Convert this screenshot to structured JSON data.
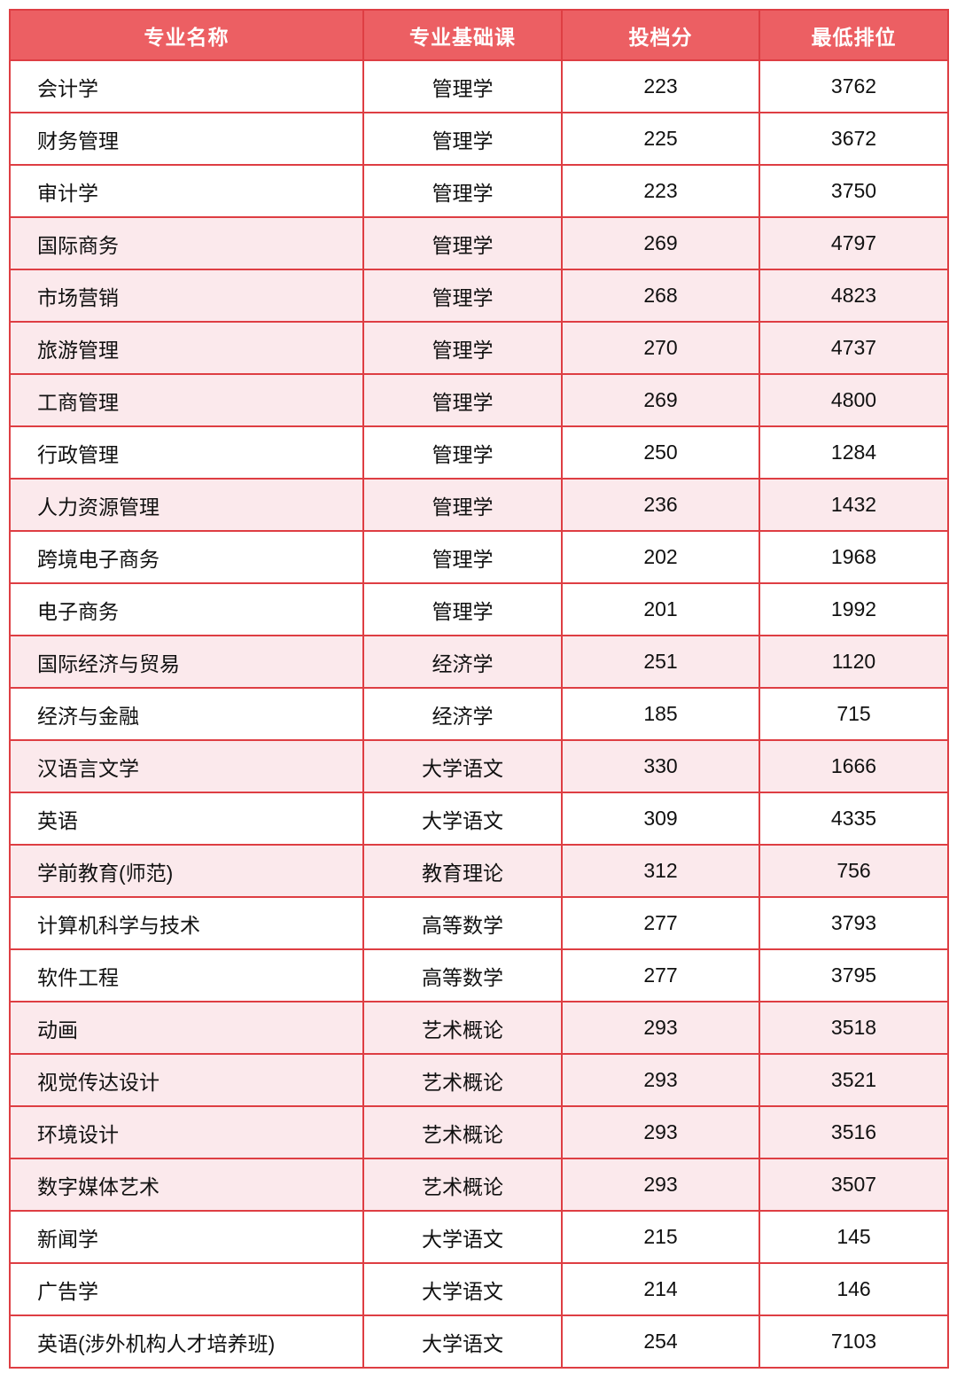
{
  "table": {
    "columns": [
      {
        "key": "major",
        "label": "专业名称"
      },
      {
        "key": "course",
        "label": "专业基础课"
      },
      {
        "key": "score",
        "label": "投档分"
      },
      {
        "key": "rank",
        "label": "最低排位"
      }
    ],
    "rows": [
      {
        "major": "会计学",
        "course": "管理学",
        "score": "223",
        "rank": "3762",
        "shaded": false
      },
      {
        "major": "财务管理",
        "course": "管理学",
        "score": "225",
        "rank": "3672",
        "shaded": false
      },
      {
        "major": "审计学",
        "course": "管理学",
        "score": "223",
        "rank": "3750",
        "shaded": false
      },
      {
        "major": "国际商务",
        "course": "管理学",
        "score": "269",
        "rank": "4797",
        "shaded": true
      },
      {
        "major": "市场营销",
        "course": "管理学",
        "score": "268",
        "rank": "4823",
        "shaded": true
      },
      {
        "major": "旅游管理",
        "course": "管理学",
        "score": "270",
        "rank": "4737",
        "shaded": true
      },
      {
        "major": "工商管理",
        "course": "管理学",
        "score": "269",
        "rank": "4800",
        "shaded": true
      },
      {
        "major": "行政管理",
        "course": "管理学",
        "score": "250",
        "rank": "1284",
        "shaded": false
      },
      {
        "major": "人力资源管理",
        "course": "管理学",
        "score": "236",
        "rank": "1432",
        "shaded": true
      },
      {
        "major": "跨境电子商务",
        "course": "管理学",
        "score": "202",
        "rank": "1968",
        "shaded": false
      },
      {
        "major": "电子商务",
        "course": "管理学",
        "score": "201",
        "rank": "1992",
        "shaded": false
      },
      {
        "major": "国际经济与贸易",
        "course": "经济学",
        "score": "251",
        "rank": "1120",
        "shaded": true
      },
      {
        "major": "经济与金融",
        "course": "经济学",
        "score": "185",
        "rank": "715",
        "shaded": false
      },
      {
        "major": "汉语言文学",
        "course": "大学语文",
        "score": "330",
        "rank": "1666",
        "shaded": true
      },
      {
        "major": "英语",
        "course": "大学语文",
        "score": "309",
        "rank": "4335",
        "shaded": false
      },
      {
        "major": "学前教育(师范)",
        "course": "教育理论",
        "score": "312",
        "rank": "756",
        "shaded": true
      },
      {
        "major": "计算机科学与技术",
        "course": "高等数学",
        "score": "277",
        "rank": "3793",
        "shaded": false
      },
      {
        "major": "软件工程",
        "course": "高等数学",
        "score": "277",
        "rank": "3795",
        "shaded": false
      },
      {
        "major": "动画",
        "course": "艺术概论",
        "score": "293",
        "rank": "3518",
        "shaded": true
      },
      {
        "major": "视觉传达设计",
        "course": "艺术概论",
        "score": "293",
        "rank": "3521",
        "shaded": true
      },
      {
        "major": "环境设计",
        "course": "艺术概论",
        "score": "293",
        "rank": "3516",
        "shaded": true
      },
      {
        "major": "数字媒体艺术",
        "course": "艺术概论",
        "score": "293",
        "rank": "3507",
        "shaded": true
      },
      {
        "major": "新闻学",
        "course": "大学语文",
        "score": "215",
        "rank": "145",
        "shaded": false
      },
      {
        "major": "广告学",
        "course": "大学语文",
        "score": "214",
        "rank": "146",
        "shaded": false
      },
      {
        "major": "英语(涉外机构人才培养班)",
        "course": "大学语文",
        "score": "254",
        "rank": "7103",
        "shaded": false
      }
    ],
    "colors": {
      "header_bg": "#EC5F63",
      "header_text": "#FFFFFF",
      "border": "#DE3E43",
      "row_bg": "#FFFFFF",
      "row_shaded_bg": "#FBE9EC",
      "text": "#111111",
      "page_bg": "#FFFFFF"
    }
  }
}
